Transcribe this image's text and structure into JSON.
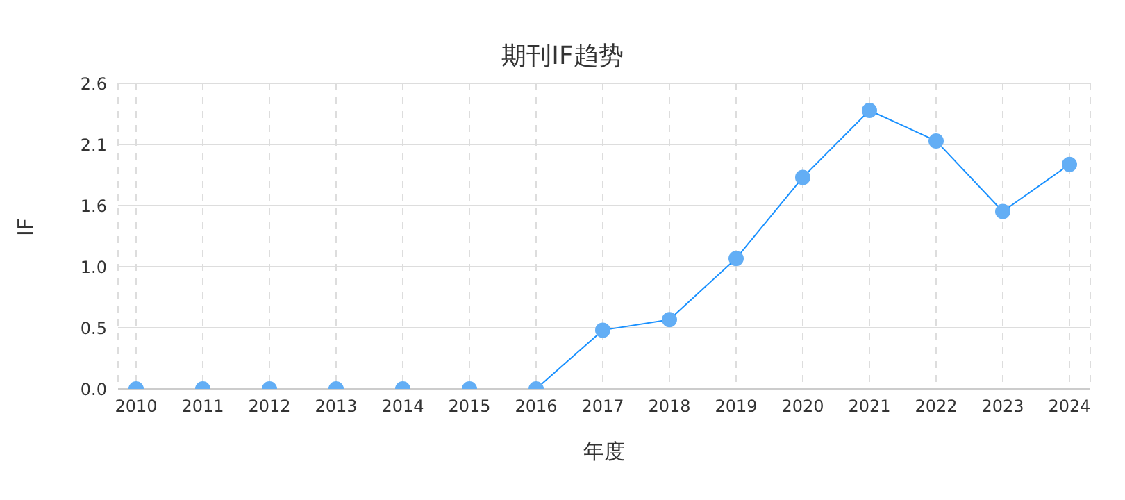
{
  "chart_data": {
    "type": "line",
    "title": "期刊IF趋势",
    "xlabel": "年度",
    "ylabel": "IF",
    "categories": [
      "2010",
      "2011",
      "2012",
      "2013",
      "2014",
      "2015",
      "2016",
      "2017",
      "2018",
      "2019",
      "2020",
      "2021",
      "2022",
      "2023",
      "2024"
    ],
    "series": [
      {
        "color": "#1890ff",
        "values": [
          0,
          0,
          0,
          0,
          0,
          0,
          0,
          0.5,
          0.59,
          1.11,
          1.8,
          2.37,
          2.11,
          1.51,
          1.91
        ]
      }
    ],
    "ylim": [
      0,
      2.6
    ],
    "yticks": [
      {
        "value": 0,
        "label": "0.0"
      },
      {
        "value": 0.52,
        "label": "0.5"
      },
      {
        "value": 1.04,
        "label": "1.0"
      },
      {
        "value": 1.56,
        "label": "1.6"
      },
      {
        "value": 2.08,
        "label": "2.1"
      },
      {
        "value": 2.6,
        "label": "2.6"
      }
    ],
    "grid": true,
    "marker": "circle",
    "line_style": "solid",
    "legend": false
  }
}
